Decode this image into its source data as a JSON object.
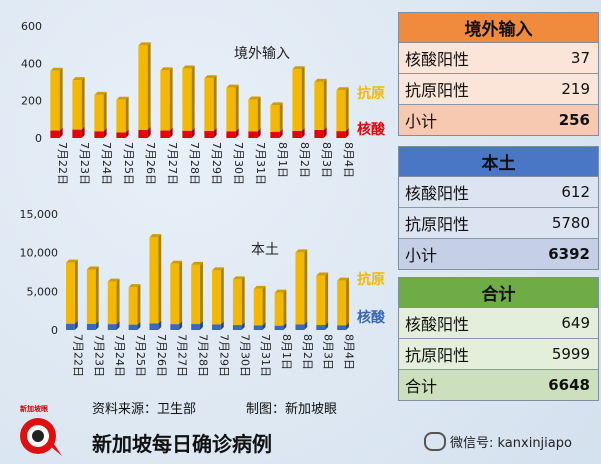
{
  "chart_data": [
    {
      "type": "bar",
      "stacked": true,
      "title": "境外输入",
      "categories": [
        "7月22日",
        "7月23日",
        "7月24日",
        "7月25日",
        "7月26日",
        "7月27日",
        "7月28日",
        "7月29日",
        "7月30日",
        "7月31日",
        "8月1日",
        "8月2日",
        "8月3日",
        "8月4日"
      ],
      "series": [
        {
          "name": "核酸",
          "color": "#e8000b",
          "values": [
            40,
            45,
            36,
            30,
            44,
            40,
            39,
            38,
            36,
            36,
            33,
            38,
            43,
            37
          ]
        },
        {
          "name": "抗原",
          "color": "#f5b800",
          "values": [
            320,
            265,
            195,
            175,
            452,
            322,
            333,
            282,
            234,
            170,
            142,
            330,
            258,
            219
          ]
        }
      ],
      "yticks": [
        0,
        200,
        400,
        600
      ],
      "ylim": [
        0,
        600
      ],
      "legend_position": "right"
    },
    {
      "type": "bar",
      "stacked": true,
      "title": "本土",
      "categories": [
        "7月22日",
        "7月23日",
        "7月24日",
        "7月25日",
        "7月26日",
        "7月27日",
        "7月28日",
        "7月29日",
        "7月30日",
        "7月31日",
        "8月1日",
        "8月2日",
        "8月3日",
        "8月4日"
      ],
      "series": [
        {
          "name": "核酸",
          "color": "#3a67b8",
          "values": [
            820,
            780,
            760,
            700,
            860,
            760,
            770,
            730,
            640,
            610,
            560,
            730,
            640,
            612
          ]
        },
        {
          "name": "抗原",
          "color": "#f5b800",
          "values": [
            7900,
            7050,
            5500,
            4850,
            11150,
            7800,
            7650,
            6980,
            5900,
            4700,
            4280,
            9300,
            6400,
            5780
          ]
        }
      ],
      "yticks": [
        0,
        5000,
        10000,
        15000
      ],
      "ytick_labels": [
        "0",
        "5,000",
        "10,000",
        "15,000"
      ],
      "ylim": [
        0,
        15000
      ],
      "legend_position": "right"
    }
  ],
  "tables": [
    {
      "header": "境外输入",
      "header_color": "#f08a3c",
      "row_color": "#fbe5d8",
      "total_color": "#f7c9b0",
      "rows": [
        {
          "label": "核酸阳性",
          "value": "37"
        },
        {
          "label": "抗原阳性",
          "value": "219"
        }
      ],
      "total": {
        "label": "小计",
        "value": "256"
      }
    },
    {
      "header": "本土",
      "header_color": "#4a76c6",
      "row_color": "#dde4f1",
      "total_color": "#c5d0e6",
      "rows": [
        {
          "label": "核酸阳性",
          "value": "612"
        },
        {
          "label": "抗原阳性",
          "value": "5780"
        }
      ],
      "total": {
        "label": "小计",
        "value": "6392"
      }
    },
    {
      "header": "合计",
      "header_color": "#6fac46",
      "row_color": "#e3eedb",
      "total_color": "#cde0bd",
      "rows": [
        {
          "label": "核酸阳性",
          "value": "649"
        },
        {
          "label": "抗原阳性",
          "value": "5999"
        }
      ],
      "total": {
        "label": "合计",
        "value": "6648"
      }
    }
  ],
  "footer": {
    "source": "资料来源：卫生部",
    "made_by": "制图：新加坡眼",
    "title": "新加坡每日确诊病例",
    "wechat": "微信号: kanxinjiapo",
    "logo_text": "新加坡眼"
  }
}
